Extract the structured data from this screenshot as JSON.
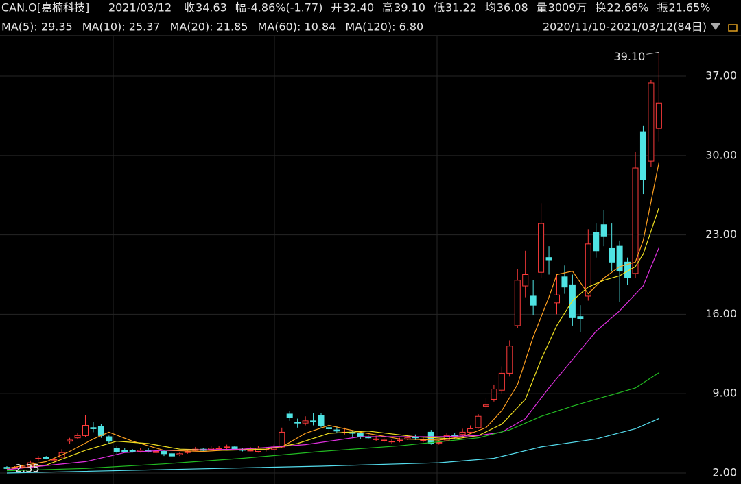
{
  "header": {
    "symbol": "CAN.O[嘉楠科技]",
    "date": "2021/03/12",
    "stats": [
      {
        "label": "收",
        "value": "34.63",
        "color": "#33dd33"
      },
      {
        "label": "幅",
        "value": "-4.86%(-1.77)",
        "color": "#33dd33"
      },
      {
        "label": "开",
        "value": "32.40",
        "color": "#33dd33"
      },
      {
        "label": "高",
        "value": "39.10",
        "color": "#ff3b3b"
      },
      {
        "label": "低",
        "value": "31.22",
        "color": "#33dd33"
      },
      {
        "label": "均",
        "value": "36.08",
        "color": "#ff3b3b"
      },
      {
        "label": "量",
        "value": "3009万",
        "color": "#e6e6e6"
      },
      {
        "label": "换",
        "value": "22.66%",
        "color": "#e6e6e6"
      },
      {
        "label": "振",
        "value": "21.65%",
        "color": "#e6e6e6"
      }
    ]
  },
  "chart_data": {
    "type": "candlestick",
    "range_label": "2020/11/10-2021/03/12(84日)",
    "up_color": "#ff3b3b",
    "down_color": "#4fe3e3",
    "ylim": [
      1.03,
      40.57
    ],
    "yticks": [
      {
        "value": 2,
        "label": "2.00"
      },
      {
        "value": 9,
        "label": "9.00"
      },
      {
        "value": 16,
        "label": "16.00"
      },
      {
        "value": 23,
        "label": "23.00"
      },
      {
        "value": 30,
        "label": "30.00"
      },
      {
        "value": 37,
        "label": "37.00"
      }
    ],
    "grid": true,
    "open": [
      2.5,
      2.4,
      2.5,
      2.6,
      3.3,
      3.4,
      3.2,
      3.4,
      4.8,
      5.1,
      5.3,
      6.0,
      6.1,
      5.2,
      4.2,
      4.0,
      4.0,
      3.9,
      4.0,
      3.8,
      3.9,
      3.7,
      3.6,
      3.8,
      4.0,
      4.1,
      4.1,
      4.2,
      4.3,
      4.3,
      4.1,
      4.0,
      3.9,
      4.1,
      4.1,
      4.3,
      7.2,
      6.5,
      6.4,
      6.6,
      7.1,
      6.0,
      5.8,
      5.6,
      5.6,
      5.5,
      5.2,
      5.0,
      4.9,
      4.8,
      4.9,
      5.0,
      5.2,
      4.9,
      5.6,
      4.7,
      4.9,
      5.3,
      5.4,
      5.6,
      6.0,
      7.9,
      8.5,
      9.3,
      10.8,
      15.0,
      18.5,
      17.6,
      19.7,
      21.0,
      17.0,
      19.3,
      18.6,
      15.8,
      17.6,
      23.2,
      23.9,
      21.8,
      22.0,
      20.6,
      19.6,
      32.1,
      29.5,
      32.4
    ],
    "high": [
      2.6,
      2.6,
      2.7,
      3.1,
      3.5,
      3.5,
      3.4,
      4.1,
      5.1,
      5.5,
      7.1,
      6.5,
      6.3,
      5.3,
      4.4,
      4.2,
      4.1,
      4.2,
      4.2,
      4.0,
      4.0,
      3.8,
      3.8,
      4.0,
      4.3,
      4.2,
      4.4,
      4.4,
      4.5,
      4.4,
      4.2,
      4.3,
      4.4,
      4.3,
      4.5,
      6.0,
      7.5,
      6.8,
      7.0,
      7.3,
      7.3,
      6.3,
      6.1,
      6.0,
      5.7,
      5.6,
      5.4,
      5.3,
      5.1,
      5.0,
      5.1,
      5.3,
      5.4,
      5.2,
      5.8,
      4.9,
      5.5,
      5.5,
      5.9,
      6.2,
      7.2,
      8.6,
      9.8,
      11.4,
      13.7,
      20.0,
      21.6,
      19.0,
      25.8,
      22.0,
      19.5,
      20.3,
      19.5,
      16.8,
      23.5,
      24.0,
      25.2,
      24.0,
      22.5,
      21.0,
      30.3,
      32.6,
      36.7,
      39.1
    ],
    "low": [
      2.35,
      2.4,
      2.45,
      2.5,
      3.1,
      3.2,
      3.0,
      3.3,
      4.6,
      5.0,
      5.2,
      5.6,
      5.1,
      4.6,
      3.7,
      3.8,
      3.8,
      3.8,
      3.8,
      3.6,
      3.5,
      3.4,
      3.5,
      3.7,
      3.9,
      3.9,
      4.0,
      4.0,
      4.1,
      4.0,
      3.9,
      3.9,
      3.8,
      3.9,
      4.0,
      4.2,
      6.6,
      6.0,
      6.2,
      6.2,
      6.0,
      5.6,
      5.5,
      5.4,
      5.2,
      5.0,
      5.0,
      4.8,
      4.7,
      4.6,
      4.7,
      4.9,
      4.9,
      4.7,
      4.5,
      4.5,
      4.8,
      5.0,
      5.2,
      5.5,
      5.9,
      7.6,
      8.3,
      9.0,
      10.5,
      14.8,
      17.5,
      15.9,
      19.2,
      19.5,
      16.0,
      17.8,
      15.0,
      14.4,
      17.2,
      21.0,
      22.0,
      19.8,
      17.1,
      18.6,
      19.2,
      26.6,
      29.0,
      31.22
    ],
    "close": [
      2.4,
      2.5,
      2.55,
      2.9,
      3.3,
      3.3,
      3.2,
      3.8,
      4.9,
      5.3,
      6.2,
      5.9,
      5.3,
      4.8,
      3.9,
      3.9,
      3.9,
      4.0,
      3.9,
      3.9,
      3.7,
      3.5,
      3.7,
      3.9,
      4.1,
      4.0,
      4.2,
      4.2,
      4.3,
      4.1,
      4.0,
      4.0,
      4.2,
      4.1,
      4.3,
      5.6,
      6.9,
      6.4,
      6.6,
      6.5,
      6.2,
      5.9,
      5.7,
      5.6,
      5.5,
      5.2,
      5.1,
      5.0,
      4.9,
      4.8,
      4.9,
      5.1,
      5.1,
      4.9,
      4.6,
      4.7,
      5.3,
      5.2,
      5.6,
      5.9,
      7.0,
      8.0,
      9.4,
      10.8,
      13.2,
      19.0,
      19.5,
      16.8,
      24.0,
      20.8,
      17.7,
      18.4,
      15.7,
      15.6,
      22.2,
      21.6,
      22.9,
      20.6,
      19.8,
      19.2,
      28.9,
      27.9,
      36.4,
      34.63
    ],
    "ma_series": [
      {
        "name": "MA(5): 29.35",
        "color": "#ffa020",
        "x": [
          0,
          5,
          8,
          11,
          13,
          16,
          20,
          25,
          30,
          35,
          38,
          41,
          45,
          50,
          55,
          58,
          61,
          63,
          65,
          67,
          69,
          70,
          72,
          74,
          76,
          78,
          80,
          81,
          83
        ],
        "values": [
          2.4,
          3.0,
          3.9,
          5.0,
          5.6,
          4.8,
          4.0,
          3.9,
          4.1,
          4.3,
          5.5,
          6.2,
          5.6,
          5.0,
          4.9,
          5.2,
          6.0,
          7.5,
          9.8,
          14,
          17.5,
          19.5,
          19.8,
          17.8,
          19.2,
          20.2,
          20.6,
          22.5,
          29.35
        ]
      },
      {
        "name": "MA(10): 25.37",
        "color": "#f0e020",
        "x": [
          0,
          5,
          10,
          14,
          18,
          22,
          28,
          33,
          37,
          41,
          46,
          52,
          57,
          60,
          63,
          66,
          68,
          70,
          72,
          74,
          76,
          78,
          80,
          81,
          83
        ],
        "values": [
          2.3,
          2.7,
          4.0,
          4.8,
          4.6,
          4.1,
          4.0,
          4.1,
          4.6,
          5.5,
          5.7,
          5.2,
          5.0,
          5.3,
          6.3,
          8.5,
          12,
          15,
          17.2,
          18.4,
          19.0,
          19.4,
          20.2,
          21.3,
          25.37
        ]
      },
      {
        "name": "MA(20): 21.85",
        "color": "#e030e0",
        "x": [
          0,
          10,
          15,
          20,
          30,
          38,
          45,
          55,
          60,
          63,
          66,
          69,
          72,
          75,
          78,
          81,
          83
        ],
        "values": [
          2.3,
          3.0,
          3.8,
          4.0,
          4.1,
          4.5,
          5.2,
          5.2,
          5.3,
          5.6,
          6.8,
          9.5,
          12,
          14.5,
          16.3,
          18.5,
          21.85
        ]
      },
      {
        "name": "MA(60): 10.84",
        "color": "#22bb22",
        "x": [
          0,
          10,
          20,
          30,
          40,
          50,
          60,
          64,
          68,
          72,
          76,
          80,
          83
        ],
        "values": [
          2.2,
          2.4,
          2.8,
          3.3,
          3.9,
          4.4,
          5.1,
          5.8,
          7.0,
          7.9,
          8.7,
          9.5,
          10.84
        ]
      },
      {
        "name": "MA(120): 6.80",
        "color": "#55ddee",
        "x": [
          0,
          20,
          40,
          55,
          62,
          68,
          75,
          80,
          83
        ],
        "values": [
          2.0,
          2.3,
          2.6,
          2.9,
          3.3,
          4.3,
          5.0,
          5.9,
          6.8
        ]
      }
    ],
    "annotations": [
      {
        "value": 39.1,
        "label": "39.10",
        "index": 83,
        "color": "#ff3b3b"
      },
      {
        "value": 2.35,
        "label": "2.35",
        "index": 0,
        "color": "#22bb22"
      }
    ]
  }
}
